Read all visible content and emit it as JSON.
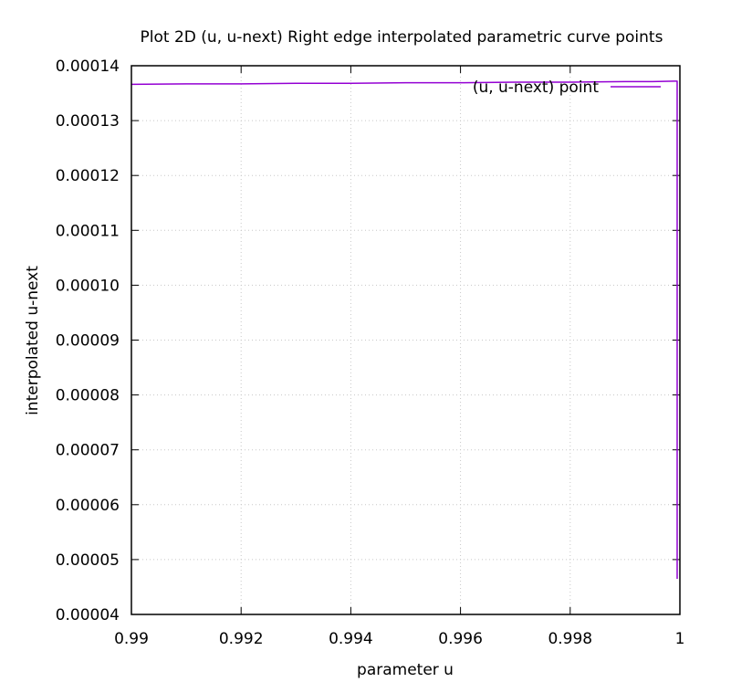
{
  "chart_data": {
    "type": "line",
    "title": "Plot 2D (u, u-next) Right edge interpolated parametric curve points",
    "xlabel": "parameter u",
    "ylabel": "interpolated u-next",
    "xlim": [
      0.99,
      1.0
    ],
    "ylim": [
      4e-05,
      0.00014
    ],
    "x_ticks": [
      {
        "value": 0.99,
        "label": "0.99"
      },
      {
        "value": 0.992,
        "label": "0.992"
      },
      {
        "value": 0.994,
        "label": "0.994"
      },
      {
        "value": 0.996,
        "label": "0.996"
      },
      {
        "value": 0.998,
        "label": "0.998"
      },
      {
        "value": 1.0,
        "label": "1"
      }
    ],
    "y_ticks": [
      {
        "value": 4e-05,
        "label": "0.00004"
      },
      {
        "value": 5e-05,
        "label": "0.00005"
      },
      {
        "value": 6e-05,
        "label": "0.00006"
      },
      {
        "value": 7e-05,
        "label": "0.00007"
      },
      {
        "value": 8e-05,
        "label": "0.00008"
      },
      {
        "value": 9e-05,
        "label": "0.00009"
      },
      {
        "value": 0.0001,
        "label": "0.00010"
      },
      {
        "value": 0.00011,
        "label": "0.00011"
      },
      {
        "value": 0.00012,
        "label": "0.00012"
      },
      {
        "value": 0.00013,
        "label": "0.00013"
      },
      {
        "value": 0.00014,
        "label": "0.00014"
      }
    ],
    "grid": true,
    "legend_position": "top-right",
    "series": [
      {
        "name": "(u, u-next) point",
        "color": "#9400d3",
        "x": [
          0.99,
          0.991,
          0.992,
          0.993,
          0.994,
          0.995,
          0.996,
          0.997,
          0.998,
          0.999,
          0.9995,
          0.9999,
          0.99995,
          0.99995,
          0.99995
        ],
        "y": [
          0.0001366,
          0.0001367,
          0.0001367,
          0.0001368,
          0.0001368,
          0.0001369,
          0.0001369,
          0.000137,
          0.000137,
          0.0001371,
          0.0001371,
          0.0001372,
          0.0001372,
          0.0001,
          4.65e-05
        ]
      }
    ]
  }
}
